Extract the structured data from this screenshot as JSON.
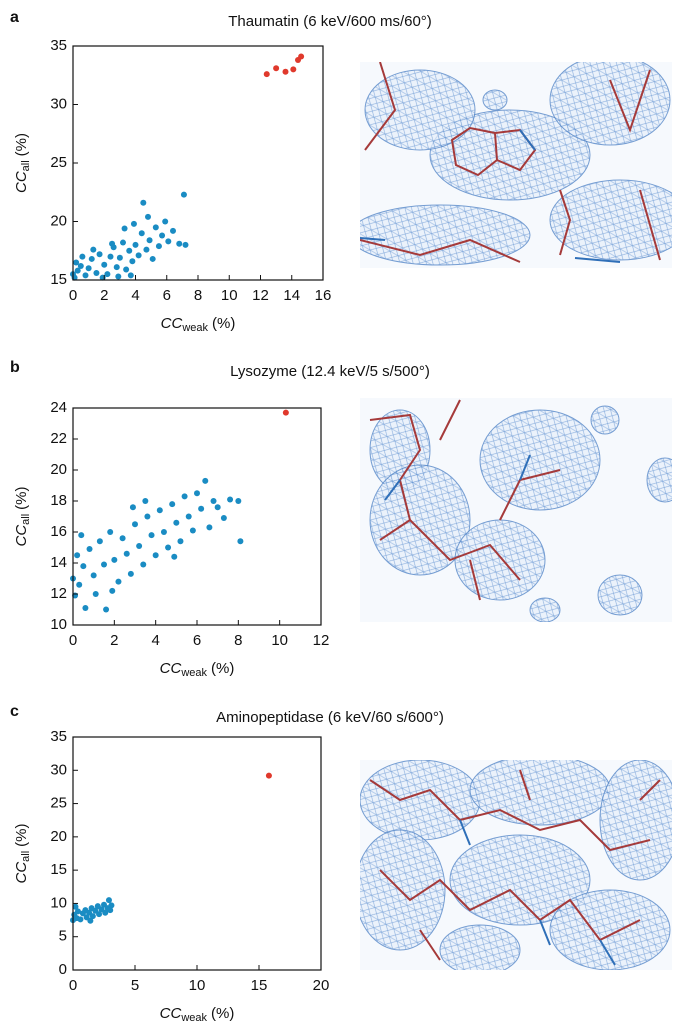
{
  "chart_data": [
    {
      "type": "scatter",
      "panel": "a",
      "title": "Thaumatin (6 keV/600 ms/60°)",
      "x_label": [
        "CC",
        "weak",
        "(%)"
      ],
      "y_label": [
        "CC",
        "all",
        "(%)"
      ],
      "xlim": [
        0,
        16
      ],
      "ylim": [
        15,
        35
      ],
      "xticks": [
        0,
        2,
        4,
        6,
        8,
        10,
        12,
        14,
        16
      ],
      "yticks": [
        15,
        20,
        25,
        30,
        35
      ],
      "series": [
        {
          "color": "#1a8cc3",
          "x": [
            0.1,
            0.3,
            0.5,
            0.2,
            0.8,
            1.0,
            1.2,
            1.5,
            1.7,
            2.0,
            2.2,
            2.4,
            2.6,
            2.8,
            3.0,
            3.2,
            3.4,
            3.6,
            3.8,
            4.0,
            4.2,
            4.4,
            4.5,
            4.7,
            4.9,
            5.1,
            5.3,
            5.5,
            5.7,
            5.9,
            6.1,
            6.4,
            6.8,
            7.1,
            7.2,
            3.9,
            3.3,
            2.5,
            1.3,
            0.6,
            0.0,
            4.8,
            2.9,
            1.9,
            3.7
          ],
          "values": [
            15.2,
            15.8,
            16.2,
            16.5,
            15.4,
            16.0,
            16.8,
            15.6,
            17.2,
            16.3,
            15.5,
            17.0,
            17.8,
            16.1,
            16.9,
            18.2,
            15.9,
            17.5,
            16.6,
            18.0,
            17.1,
            19.0,
            21.6,
            17.6,
            18.4,
            16.8,
            19.5,
            17.9,
            18.8,
            20.0,
            18.3,
            19.2,
            18.1,
            22.3,
            18.0,
            19.8,
            19.4,
            18.1,
            17.6,
            17.0,
            15.5,
            20.4,
            15.3,
            15.2,
            15.4
          ]
        },
        {
          "color": "#e0392c",
          "x": [
            12.4,
            13.0,
            13.6,
            14.1,
            14.4,
            14.6
          ],
          "values": [
            32.6,
            33.1,
            32.8,
            33.0,
            33.8,
            34.1
          ]
        }
      ]
    },
    {
      "type": "scatter",
      "panel": "b",
      "title": "Lysozyme (12.4 keV/5 s/500°)",
      "x_label": [
        "CC",
        "weak",
        "(%)"
      ],
      "y_label": [
        "CC",
        "all",
        "(%)"
      ],
      "xlim": [
        0,
        12
      ],
      "ylim": [
        10,
        24
      ],
      "xticks": [
        0,
        2,
        4,
        6,
        8,
        10,
        12
      ],
      "yticks": [
        10,
        12,
        14,
        16,
        18,
        20,
        22,
        24
      ],
      "series": [
        {
          "color": "#1a8cc3",
          "x": [
            0.0,
            0.1,
            0.2,
            0.3,
            0.5,
            0.6,
            0.8,
            1.0,
            1.1,
            1.3,
            1.5,
            1.6,
            1.8,
            2.0,
            2.2,
            2.4,
            2.6,
            2.8,
            3.0,
            3.2,
            3.4,
            3.6,
            3.8,
            4.0,
            4.2,
            4.4,
            4.6,
            4.8,
            5.0,
            5.2,
            5.4,
            5.6,
            5.8,
            6.0,
            6.2,
            6.4,
            6.6,
            6.8,
            7.0,
            7.3,
            7.6,
            8.0,
            8.1,
            0.4,
            2.9,
            1.9,
            3.5,
            4.9
          ],
          "values": [
            13.0,
            11.9,
            14.5,
            12.6,
            13.8,
            11.1,
            14.9,
            13.2,
            12.0,
            15.4,
            13.9,
            11.0,
            16.0,
            14.2,
            12.8,
            15.6,
            14.6,
            13.3,
            16.5,
            15.1,
            13.9,
            17.0,
            15.8,
            14.5,
            17.4,
            16.0,
            15.0,
            17.8,
            16.6,
            15.4,
            18.3,
            17.0,
            16.1,
            18.5,
            17.5,
            19.3,
            16.3,
            18.0,
            17.6,
            16.9,
            18.1,
            18.0,
            15.4,
            15.8,
            17.6,
            12.2,
            18.0,
            14.4
          ]
        },
        {
          "color": "#e0392c",
          "x": [
            10.3
          ],
          "values": [
            23.7
          ]
        }
      ]
    },
    {
      "type": "scatter",
      "panel": "c",
      "title": "Aminopeptidase (6 keV/60 s/600°)",
      "x_label": [
        "CC",
        "weak",
        "(%)"
      ],
      "y_label": [
        "CC",
        "all",
        "(%)"
      ],
      "xlim": [
        0,
        20
      ],
      "ylim": [
        0,
        35
      ],
      "xticks": [
        0,
        5,
        10,
        15,
        20
      ],
      "yticks": [
        0,
        5,
        10,
        15,
        20,
        25,
        30,
        35
      ],
      "series": [
        {
          "color": "#1a8cc3",
          "x": [
            0.0,
            0.1,
            0.3,
            0.4,
            0.6,
            0.8,
            1.0,
            1.1,
            1.3,
            1.5,
            1.6,
            1.8,
            2.0,
            2.1,
            2.3,
            2.5,
            2.6,
            2.8,
            2.9,
            3.0,
            3.1,
            0.2,
            1.4
          ],
          "values": [
            7.5,
            8.3,
            7.8,
            8.8,
            7.6,
            8.5,
            9.0,
            7.9,
            8.6,
            9.3,
            8.1,
            8.9,
            9.6,
            8.4,
            9.1,
            9.8,
            8.6,
            9.3,
            10.5,
            9.0,
            9.7,
            9.5,
            7.4
          ]
        },
        {
          "color": "#e0392c",
          "x": [
            15.8
          ],
          "values": [
            29.2
          ]
        }
      ]
    }
  ]
}
